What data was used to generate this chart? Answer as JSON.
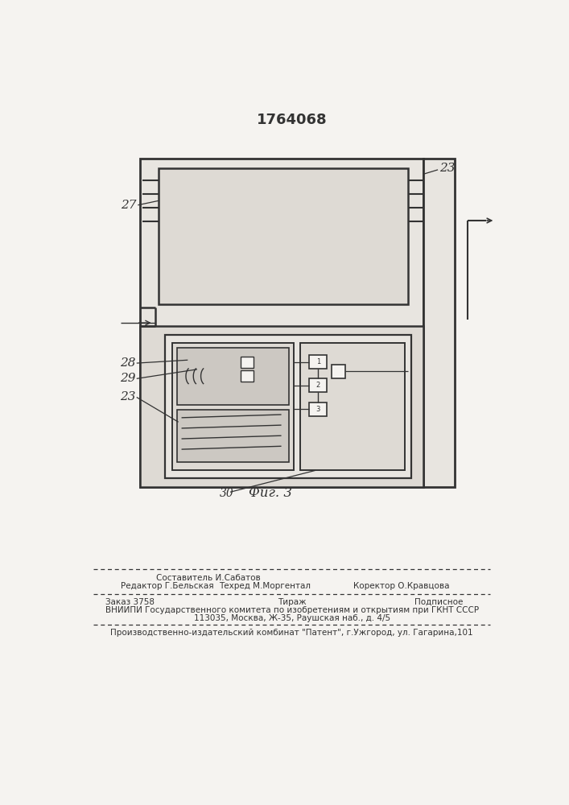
{
  "title": "1764068",
  "bg_color": "#f5f3f0",
  "line_color": "#333333",
  "fill_light": "#e8e5e0",
  "fill_mid": "#dedad4",
  "fill_dark": "#ccc8c2",
  "label_27": "27",
  "label_23": "23",
  "label_28": "28",
  "label_29": "29",
  "label_23b": "23",
  "label_30": "30",
  "fig_label": "Фиг. 3"
}
